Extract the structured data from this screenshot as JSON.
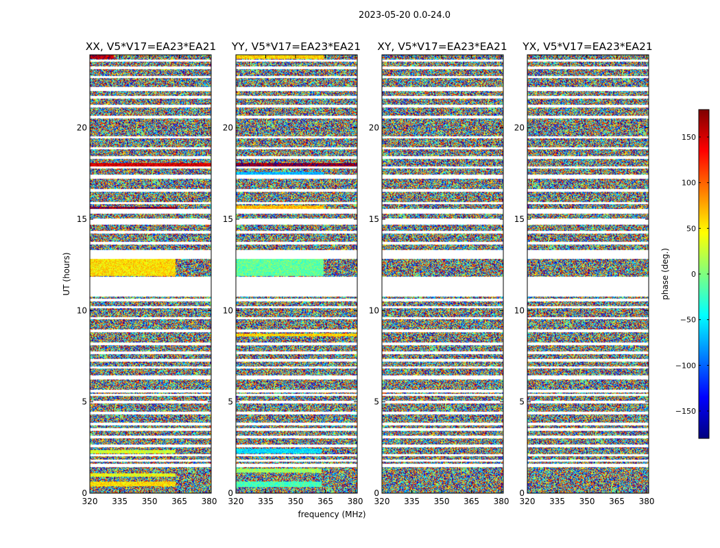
{
  "chart_data": {
    "type": "heatmap",
    "title": "2023-05-20 0.0-24.0",
    "xlabel": "frequency (MHz)",
    "ylabel": "UT (hours)",
    "xlim": [
      320,
      381
    ],
    "ylim": [
      0,
      24
    ],
    "xticks": [
      320,
      335,
      350,
      365,
      380
    ],
    "yticks": [
      0,
      5,
      10,
      15,
      20
    ],
    "panels": [
      {
        "title": "XX, V5*V17=EA23*EA21"
      },
      {
        "title": "YY, V5*V17=EA23*EA21"
      },
      {
        "title": "XY, V5*V17=EA23*EA21"
      },
      {
        "title": "YX, V5*V17=EA23*EA21"
      }
    ],
    "colorbar": {
      "label": "phase (deg.)",
      "range": [
        -180,
        180
      ],
      "ticks": [
        -150,
        -100,
        -50,
        0,
        50,
        100,
        150
      ],
      "tick_labels": [
        "−150",
        "−100",
        "−50",
        "0",
        "50",
        "100",
        "150"
      ],
      "colormap": "jet"
    },
    "gaps_hours": [
      [
        1.45,
        1.6
      ],
      [
        1.75,
        1.85
      ],
      [
        2.05,
        2.15
      ],
      [
        2.55,
        2.65
      ],
      [
        3.05,
        3.15
      ],
      [
        3.45,
        3.55
      ],
      [
        3.75,
        3.85
      ],
      [
        4.35,
        4.45
      ],
      [
        4.95,
        5.05
      ],
      [
        5.35,
        5.45
      ],
      [
        5.55,
        5.65
      ],
      [
        6.25,
        6.45
      ],
      [
        6.85,
        6.95
      ],
      [
        7.25,
        7.35
      ],
      [
        7.65,
        7.75
      ],
      [
        8.15,
        8.25
      ],
      [
        8.85,
        8.95
      ],
      [
        9.55,
        9.65
      ],
      [
        10.15,
        10.25
      ],
      [
        10.55,
        10.65
      ],
      [
        10.8,
        11.85
      ],
      [
        12.85,
        13.3
      ],
      [
        13.65,
        13.75
      ],
      [
        14.25,
        14.35
      ],
      [
        14.75,
        15.05
      ],
      [
        15.35,
        15.55
      ],
      [
        15.85,
        15.95
      ],
      [
        16.55,
        16.65
      ],
      [
        17.25,
        17.45
      ],
      [
        17.8,
        17.9
      ],
      [
        18.35,
        18.45
      ],
      [
        18.85,
        18.95
      ],
      [
        19.45,
        19.55
      ],
      [
        20.55,
        20.65
      ],
      [
        21.15,
        21.25
      ],
      [
        21.65,
        21.75
      ],
      [
        22.05,
        22.25
      ],
      [
        22.75,
        22.85
      ],
      [
        23.25,
        23.35
      ],
      [
        23.65,
        23.75
      ]
    ],
    "coherent_bands": [
      {
        "panel": 0,
        "y": [
          0.4,
          0.65
        ],
        "x": [
          320,
          363
        ],
        "phase": 55
      },
      {
        "panel": 0,
        "y": [
          0.9,
          1.1
        ],
        "x": [
          320,
          363
        ],
        "phase": 40
      },
      {
        "panel": 0,
        "y": [
          2.2,
          2.4
        ],
        "x": [
          320,
          363
        ],
        "phase": 30
      },
      {
        "panel": 0,
        "y": [
          11.9,
          12.85
        ],
        "x": [
          320,
          363
        ],
        "phase": 55
      },
      {
        "panel": 0,
        "y": [
          15.55,
          15.7
        ],
        "x": [
          320,
          364
        ],
        "phase": 170
      },
      {
        "panel": 0,
        "y": [
          17.9,
          18.1
        ],
        "x": [
          320,
          381
        ],
        "phase": 150
      },
      {
        "panel": 0,
        "y": [
          23.8,
          24.0
        ],
        "x": [
          320,
          332
        ],
        "phase": 160
      },
      {
        "panel": 1,
        "y": [
          0.35,
          0.65
        ],
        "x": [
          320,
          363
        ],
        "phase": -20
      },
      {
        "panel": 1,
        "y": [
          1.15,
          1.35
        ],
        "x": [
          320,
          363
        ],
        "phase": 10
      },
      {
        "panel": 1,
        "y": [
          2.2,
          2.45
        ],
        "x": [
          320,
          363
        ],
        "phase": -55
      },
      {
        "panel": 1,
        "y": [
          8.6,
          8.75
        ],
        "x": [
          320,
          381
        ],
        "phase": 60
      },
      {
        "panel": 1,
        "y": [
          11.9,
          12.85
        ],
        "x": [
          320,
          364
        ],
        "phase": -10
      },
      {
        "panel": 1,
        "y": [
          15.55,
          15.75
        ],
        "x": [
          320,
          364
        ],
        "phase": 70
      },
      {
        "panel": 1,
        "y": [
          17.45,
          17.6
        ],
        "x": [
          320,
          364
        ],
        "phase": -70
      },
      {
        "panel": 1,
        "y": [
          17.9,
          18.1
        ],
        "x": [
          320,
          381
        ],
        "phase": 170
      },
      {
        "panel": 1,
        "y": [
          23.8,
          24.0
        ],
        "x": [
          320,
          364
        ],
        "phase": 60
      }
    ]
  }
}
